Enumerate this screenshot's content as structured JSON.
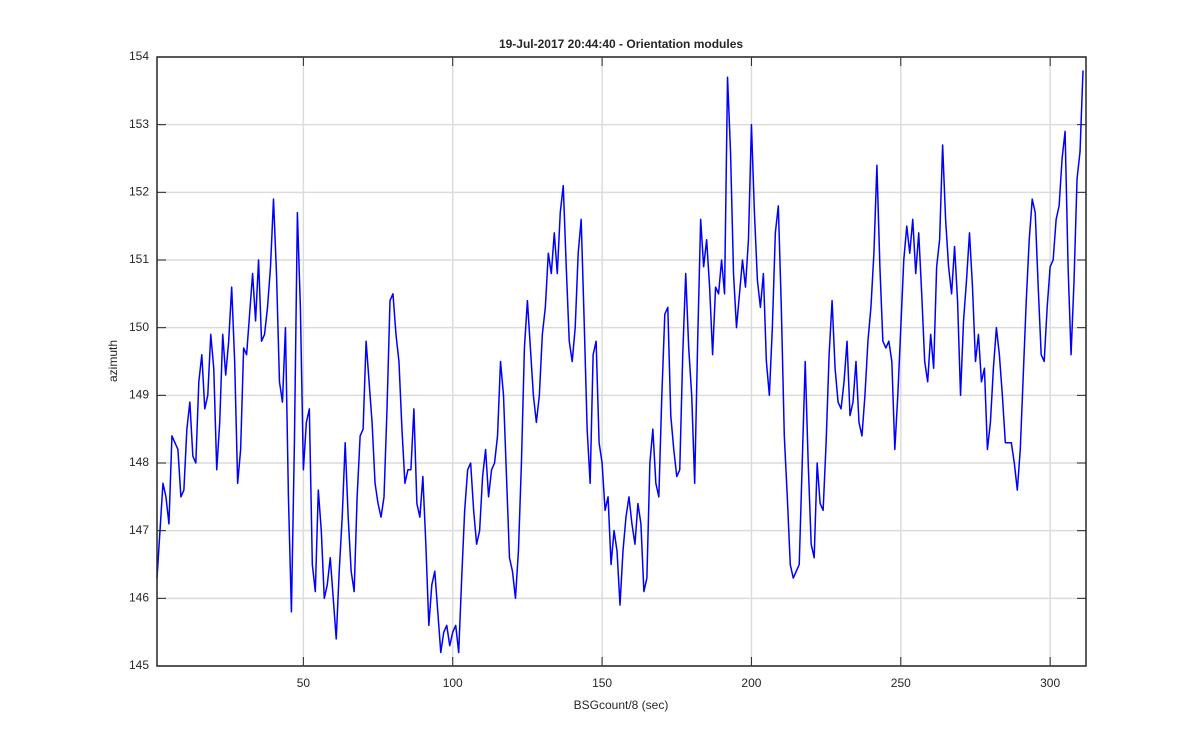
{
  "chart_data": {
    "type": "line",
    "title": "19-Jul-2017 20:44:40 - Orientation modules",
    "xlabel": "BSGcount/8 (sec)",
    "ylabel": "azimuth",
    "xlim": [
      1,
      312
    ],
    "ylim": [
      145,
      154
    ],
    "xticks": [
      50,
      100,
      150,
      200,
      250,
      300
    ],
    "yticks": [
      145,
      146,
      147,
      148,
      149,
      150,
      151,
      152,
      153,
      154
    ],
    "grid": true,
    "color": "#0000ff",
    "x": [
      1,
      2,
      3,
      4,
      5,
      6,
      7,
      8,
      9,
      10,
      11,
      12,
      13,
      14,
      15,
      16,
      17,
      18,
      19,
      20,
      21,
      22,
      23,
      24,
      25,
      26,
      27,
      28,
      29,
      30,
      31,
      32,
      33,
      34,
      35,
      36,
      37,
      38,
      39,
      40,
      41,
      42,
      43,
      44,
      45,
      46,
      47,
      48,
      49,
      50,
      51,
      52,
      53,
      54,
      55,
      56,
      57,
      58,
      59,
      60,
      61,
      62,
      63,
      64,
      65,
      66,
      67,
      68,
      69,
      70,
      71,
      72,
      73,
      74,
      75,
      76,
      77,
      78,
      79,
      80,
      81,
      82,
      83,
      84,
      85,
      86,
      87,
      88,
      89,
      90,
      91,
      92,
      93,
      94,
      95,
      96,
      97,
      98,
      99,
      100,
      101,
      102,
      103,
      104,
      105,
      106,
      107,
      108,
      109,
      110,
      111,
      112,
      113,
      114,
      115,
      116,
      117,
      118,
      119,
      120,
      121,
      122,
      123,
      124,
      125,
      126,
      127,
      128,
      129,
      130,
      131,
      132,
      133,
      134,
      135,
      136,
      137,
      138,
      139,
      140,
      141,
      142,
      143,
      144,
      145,
      146,
      147,
      148,
      149,
      150,
      151,
      152,
      153,
      154,
      155,
      156,
      157,
      158,
      159,
      160,
      161,
      162,
      163,
      164,
      165,
      166,
      167,
      168,
      169,
      170,
      171,
      172,
      173,
      174,
      175,
      176,
      177,
      178,
      179,
      180,
      181,
      182,
      183,
      184,
      185,
      186,
      187,
      188,
      189,
      190,
      191,
      192,
      193,
      194,
      195,
      196,
      197,
      198,
      199,
      200,
      201,
      202,
      203,
      204,
      205,
      206,
      207,
      208,
      209,
      210,
      211,
      212,
      213,
      214,
      215,
      216,
      217,
      218,
      219,
      220,
      221,
      222,
      223,
      224,
      225,
      226,
      227,
      228,
      229,
      230,
      231,
      232,
      233,
      234,
      235,
      236,
      237,
      238,
      239,
      240,
      241,
      242,
      243,
      244,
      245,
      246,
      247,
      248,
      249,
      250,
      251,
      252,
      253,
      254,
      255,
      256,
      257,
      258,
      259,
      260,
      261,
      262,
      263,
      264,
      265,
      266,
      267,
      268,
      269,
      270,
      271,
      272,
      273,
      274,
      275,
      276,
      277,
      278,
      279,
      280,
      281,
      282,
      283,
      284,
      285,
      286,
      287,
      288,
      289,
      290,
      291,
      292,
      293,
      294,
      295,
      296,
      297,
      298,
      299,
      300,
      301,
      302,
      303,
      304,
      305,
      306,
      307,
      308,
      309,
      310,
      311
    ],
    "values": [
      146.3,
      147,
      147.7,
      147.5,
      147.1,
      148.4,
      148.3,
      148.2,
      147.5,
      147.6,
      148.5,
      148.9,
      148.1,
      148,
      149.2,
      149.6,
      148.8,
      149,
      149.9,
      149.4,
      147.9,
      148.6,
      149.9,
      149.3,
      149.8,
      150.6,
      149.5,
      147.7,
      148.2,
      149.7,
      149.6,
      150.2,
      150.8,
      150.1,
      151,
      149.8,
      149.9,
      150.3,
      150.9,
      151.9,
      150.8,
      149.2,
      148.9,
      150,
      147.5,
      145.8,
      148.3,
      151.7,
      150.3,
      147.9,
      148.6,
      148.8,
      146.5,
      146.1,
      147.6,
      147,
      146,
      146.2,
      146.6,
      146,
      145.4,
      146.4,
      147.2,
      148.3,
      147.2,
      146.4,
      146.1,
      147.5,
      148.4,
      148.5,
      149.8,
      149.2,
      148.6,
      147.7,
      147.4,
      147.2,
      147.5,
      148.8,
      150.4,
      150.5,
      149.9,
      149.5,
      148.5,
      147.7,
      147.9,
      147.9,
      148.8,
      147.4,
      147.2,
      147.8,
      146.8,
      145.6,
      146.2,
      146.4,
      145.8,
      145.2,
      145.5,
      145.6,
      145.3,
      145.5,
      145.6,
      145.2,
      146.3,
      147.3,
      147.9,
      148,
      147.3,
      146.8,
      147,
      147.8,
      148.2,
      147.5,
      147.9,
      148,
      148.4,
      149.5,
      149,
      147.8,
      146.6,
      146.4,
      146,
      146.7,
      148,
      149.7,
      150.4,
      149.7,
      149,
      148.6,
      149,
      149.9,
      150.3,
      151.1,
      150.8,
      151.4,
      150.8,
      151.7,
      152.1,
      150.9,
      149.8,
      149.5,
      150,
      151.1,
      151.6,
      150.1,
      148.5,
      147.7,
      149.6,
      149.8,
      148.3,
      148,
      147.3,
      147.5,
      146.5,
      147,
      146.7,
      145.9,
      146.7,
      147.2,
      147.5,
      147.1,
      146.8,
      147.4,
      147.1,
      146.1,
      146.3,
      148,
      148.5,
      147.7,
      147.5,
      149,
      150.2,
      150.3,
      148.7,
      148.2,
      147.8,
      147.9,
      149.6,
      150.8,
      149.7,
      149,
      147.7,
      149.8,
      151.6,
      150.9,
      151.3,
      150.6,
      149.6,
      150.6,
      150.5,
      151,
      150.5,
      153.7,
      152.6,
      150.8,
      150,
      150.5,
      151,
      150.6,
      151.3,
      153,
      151.7,
      150.7,
      150.3,
      150.8,
      149.5,
      149,
      150,
      151.4,
      151.8,
      150.3,
      148.4,
      147.5,
      146.5,
      146.3,
      146.4,
      146.5,
      148,
      149.5,
      148,
      146.8,
      146.6,
      148,
      147.4,
      147.3,
      148.3,
      149.6,
      150.4,
      149.4,
      148.9,
      148.8,
      149.2,
      149.8,
      148.7,
      148.9,
      149.5,
      148.6,
      148.4,
      149,
      149.8,
      150.3,
      151.1,
      152.4,
      150.9,
      149.8,
      149.7,
      149.8,
      149.5,
      148.2,
      149,
      150,
      151,
      151.5,
      151.1,
      151.6,
      150.8,
      151.4,
      150.5,
      149.5,
      149.2,
      149.9,
      149.4,
      150.9,
      151.3,
      152.7,
      151.6,
      150.9,
      150.5,
      151.2,
      150.4,
      149,
      150.1,
      150.7,
      151.4,
      150.6,
      149.5,
      149.9,
      149.2,
      149.4,
      148.2,
      148.6,
      149.4,
      150,
      149.6,
      149,
      148.3,
      148.3,
      148.3,
      148,
      147.6,
      148.2,
      149.3,
      150.4,
      151.3,
      151.9,
      151.7,
      150.6,
      149.6,
      149.5,
      150.3,
      150.9,
      151,
      151.6,
      151.8,
      152.5,
      152.9,
      150.9,
      149.6,
      150.7,
      152.2,
      152.6,
      153.8
    ]
  }
}
